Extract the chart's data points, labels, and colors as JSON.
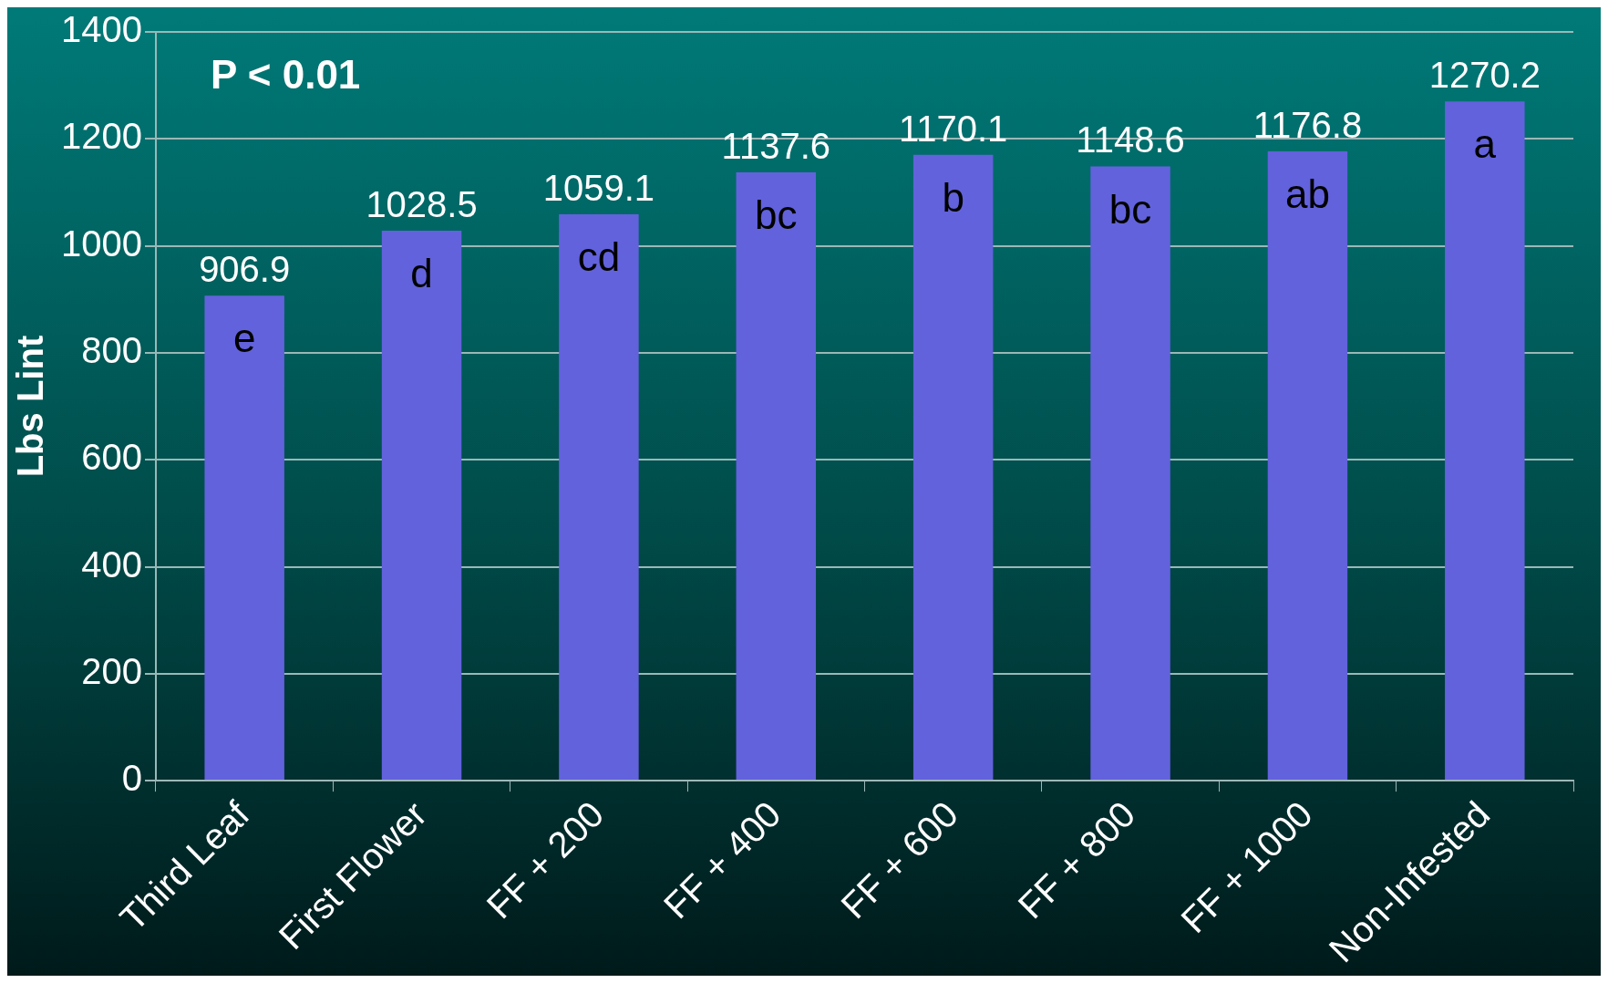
{
  "chart_data": {
    "type": "bar",
    "ylabel": "Lbs Lint",
    "categories": [
      "Third Leaf",
      "First Flower",
      "FF + 200",
      "FF + 400",
      "FF + 600",
      "FF + 800",
      "FF + 1000",
      "Non-Infested"
    ],
    "values": [
      906.9,
      1028.5,
      1059.1,
      1137.6,
      1170.1,
      1148.6,
      1176.8,
      1270.2
    ],
    "color": "#6262dc",
    "ylim": [
      0,
      1400
    ],
    "yticks": [
      0,
      200,
      400,
      600,
      800,
      1000,
      1200,
      1400
    ],
    "grid": "y",
    "data_labels": true,
    "annotations": [
      "P < 0.01",
      "e",
      "d",
      "cd",
      "bc",
      "b",
      "bc",
      "ab",
      "a"
    ]
  }
}
